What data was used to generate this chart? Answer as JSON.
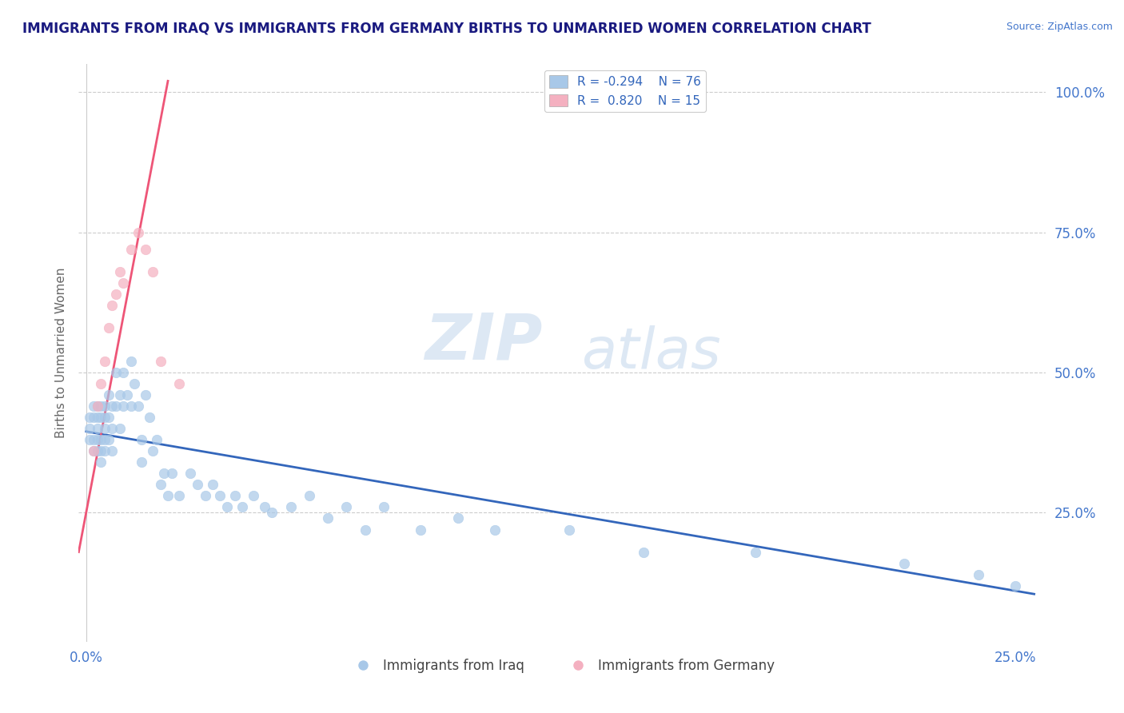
{
  "title": "IMMIGRANTS FROM IRAQ VS IMMIGRANTS FROM GERMANY BIRTHS TO UNMARRIED WOMEN CORRELATION CHART",
  "source": "Source: ZipAtlas.com",
  "ylabel_left": "Births to Unmarried Women",
  "xlim": [
    -0.002,
    0.258
  ],
  "ylim": [
    0.02,
    1.05
  ],
  "color_iraq": "#a8c8e8",
  "color_germany": "#f4b0c0",
  "color_iraq_line": "#3366bb",
  "color_germany_line": "#ee5577",
  "watermark_zip": "ZIP",
  "watermark_atlas": "atlas",
  "background_color": "#ffffff",
  "iraq_x": [
    0.001,
    0.001,
    0.001,
    0.002,
    0.002,
    0.002,
    0.002,
    0.003,
    0.003,
    0.003,
    0.003,
    0.003,
    0.004,
    0.004,
    0.004,
    0.004,
    0.004,
    0.005,
    0.005,
    0.005,
    0.005,
    0.005,
    0.006,
    0.006,
    0.006,
    0.007,
    0.007,
    0.007,
    0.008,
    0.008,
    0.009,
    0.009,
    0.01,
    0.01,
    0.011,
    0.012,
    0.012,
    0.013,
    0.014,
    0.015,
    0.015,
    0.016,
    0.017,
    0.018,
    0.019,
    0.02,
    0.021,
    0.022,
    0.023,
    0.025,
    0.028,
    0.03,
    0.032,
    0.034,
    0.036,
    0.038,
    0.04,
    0.042,
    0.045,
    0.048,
    0.05,
    0.055,
    0.06,
    0.065,
    0.07,
    0.075,
    0.08,
    0.09,
    0.1,
    0.11,
    0.13,
    0.15,
    0.18,
    0.22,
    0.24,
    0.25
  ],
  "iraq_y": [
    0.42,
    0.4,
    0.38,
    0.44,
    0.42,
    0.38,
    0.36,
    0.44,
    0.42,
    0.4,
    0.38,
    0.36,
    0.44,
    0.42,
    0.38,
    0.36,
    0.34,
    0.44,
    0.42,
    0.4,
    0.38,
    0.36,
    0.46,
    0.42,
    0.38,
    0.44,
    0.4,
    0.36,
    0.5,
    0.44,
    0.46,
    0.4,
    0.5,
    0.44,
    0.46,
    0.52,
    0.44,
    0.48,
    0.44,
    0.38,
    0.34,
    0.46,
    0.42,
    0.36,
    0.38,
    0.3,
    0.32,
    0.28,
    0.32,
    0.28,
    0.32,
    0.3,
    0.28,
    0.3,
    0.28,
    0.26,
    0.28,
    0.26,
    0.28,
    0.26,
    0.25,
    0.26,
    0.28,
    0.24,
    0.26,
    0.22,
    0.26,
    0.22,
    0.24,
    0.22,
    0.22,
    0.18,
    0.18,
    0.16,
    0.14,
    0.12
  ],
  "germany_x": [
    0.002,
    0.003,
    0.004,
    0.005,
    0.006,
    0.007,
    0.008,
    0.009,
    0.01,
    0.012,
    0.014,
    0.016,
    0.018,
    0.02,
    0.025
  ],
  "germany_y": [
    0.36,
    0.44,
    0.48,
    0.52,
    0.58,
    0.62,
    0.64,
    0.68,
    0.66,
    0.72,
    0.75,
    0.72,
    0.68,
    0.52,
    0.48
  ],
  "iraq_trend_x": [
    0.0,
    0.255
  ],
  "iraq_trend_y": [
    0.395,
    0.105
  ],
  "germany_trend_x": [
    -0.002,
    0.022
  ],
  "germany_trend_y": [
    0.18,
    1.02
  ],
  "xticks": [
    0.0,
    0.05,
    0.1,
    0.15,
    0.2,
    0.25
  ],
  "xticklabels": [
    "0.0%",
    "",
    "",
    "",
    "",
    "25.0%"
  ],
  "yticks_right": [
    0.25,
    0.5,
    0.75,
    1.0
  ],
  "yticklabels_right": [
    "25.0%",
    "50.0%",
    "75.0%",
    "100.0%"
  ],
  "legend_entries": [
    {
      "r": "R = -0.294",
      "n": "N = 76",
      "color": "#a8c8e8"
    },
    {
      "r": "R =  0.820",
      "n": "N = 15",
      "color": "#f4b0c0"
    }
  ]
}
